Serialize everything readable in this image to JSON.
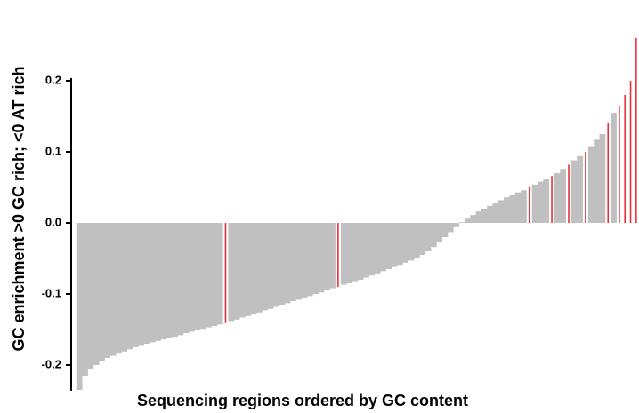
{
  "chart_data": {
    "type": "bar",
    "ylabel": "GC enrichment >0 GC rich; <0 AT rich",
    "xlabel": "Sequencing regions ordered by GC content",
    "ylim": [
      -0.24,
      0.28
    ],
    "yticks": [
      -0.2,
      -0.1,
      {
        "value": 0,
        "label": "0.0"
      },
      0.1,
      0.2
    ],
    "values": [
      -0.235,
      -0.215,
      -0.205,
      -0.2,
      -0.195,
      -0.19,
      -0.187,
      -0.184,
      -0.181,
      -0.178,
      -0.175,
      -0.173,
      -0.17,
      -0.168,
      -0.166,
      -0.164,
      -0.162,
      -0.16,
      -0.158,
      -0.155,
      -0.153,
      -0.151,
      -0.149,
      -0.147,
      -0.145,
      -0.143,
      -0.141,
      -0.138,
      -0.136,
      -0.133,
      -0.131,
      -0.128,
      -0.126,
      -0.123,
      -0.121,
      -0.118,
      -0.115,
      -0.113,
      -0.11,
      -0.108,
      -0.105,
      -0.103,
      -0.1,
      -0.098,
      -0.095,
      -0.092,
      -0.09,
      -0.087,
      -0.085,
      -0.082,
      -0.08,
      -0.077,
      -0.074,
      -0.071,
      -0.068,
      -0.065,
      -0.062,
      -0.059,
      -0.056,
      -0.053,
      -0.05,
      -0.045,
      -0.04,
      -0.034,
      -0.027,
      -0.02,
      -0.013,
      -0.006,
      0.001,
      0.006,
      0.011,
      0.016,
      0.02,
      0.024,
      0.028,
      0.032,
      0.036,
      0.039,
      0.043,
      0.046,
      0.05,
      0.054,
      0.058,
      0.062,
      0.066,
      0.07,
      0.076,
      0.082,
      0.088,
      0.094,
      0.1,
      0.108,
      0.117,
      0.125,
      0.14,
      0.155,
      0.165,
      0.18,
      0.2,
      0.26
    ],
    "colors": [
      "#c0c0c0",
      "#c0c0c0",
      "#c0c0c0",
      "#c0c0c0",
      "#c0c0c0",
      "#c0c0c0",
      "#c0c0c0",
      "#c0c0c0",
      "#c0c0c0",
      "#c0c0c0",
      "#c0c0c0",
      "#c0c0c0",
      "#c0c0c0",
      "#c0c0c0",
      "#c0c0c0",
      "#c0c0c0",
      "#c0c0c0",
      "#c0c0c0",
      "#c0c0c0",
      "#c0c0c0",
      "#c0c0c0",
      "#c0c0c0",
      "#c0c0c0",
      "#c0c0c0",
      "#c0c0c0",
      "#c0c0c0",
      "#e8303a",
      "#c0c0c0",
      "#c0c0c0",
      "#c0c0c0",
      "#c0c0c0",
      "#c0c0c0",
      "#c0c0c0",
      "#c0c0c0",
      "#c0c0c0",
      "#c0c0c0",
      "#c0c0c0",
      "#c0c0c0",
      "#c0c0c0",
      "#c0c0c0",
      "#c0c0c0",
      "#c0c0c0",
      "#c0c0c0",
      "#c0c0c0",
      "#c0c0c0",
      "#c0c0c0",
      "#e8303a",
      "#c0c0c0",
      "#c0c0c0",
      "#c0c0c0",
      "#c0c0c0",
      "#c0c0c0",
      "#c0c0c0",
      "#c0c0c0",
      "#c0c0c0",
      "#c0c0c0",
      "#c0c0c0",
      "#c0c0c0",
      "#c0c0c0",
      "#c0c0c0",
      "#c0c0c0",
      "#c0c0c0",
      "#c0c0c0",
      "#c0c0c0",
      "#c0c0c0",
      "#c0c0c0",
      "#c0c0c0",
      "#c0c0c0",
      "#c0c0c0",
      "#c0c0c0",
      "#c0c0c0",
      "#c0c0c0",
      "#c0c0c0",
      "#c0c0c0",
      "#c0c0c0",
      "#c0c0c0",
      "#c0c0c0",
      "#c0c0c0",
      "#c0c0c0",
      "#c0c0c0",
      "#e8303a",
      "#c0c0c0",
      "#c0c0c0",
      "#c0c0c0",
      "#e8303a",
      "#c0c0c0",
      "#c0c0c0",
      "#e8303a",
      "#c0c0c0",
      "#c0c0c0",
      "#e8303a",
      "#c0c0c0",
      "#c0c0c0",
      "#c0c0c0",
      "#e8303a",
      "#c0c0c0",
      "#e8303a",
      "#e8303a",
      "#e8303a",
      "#e8303a"
    ]
  }
}
